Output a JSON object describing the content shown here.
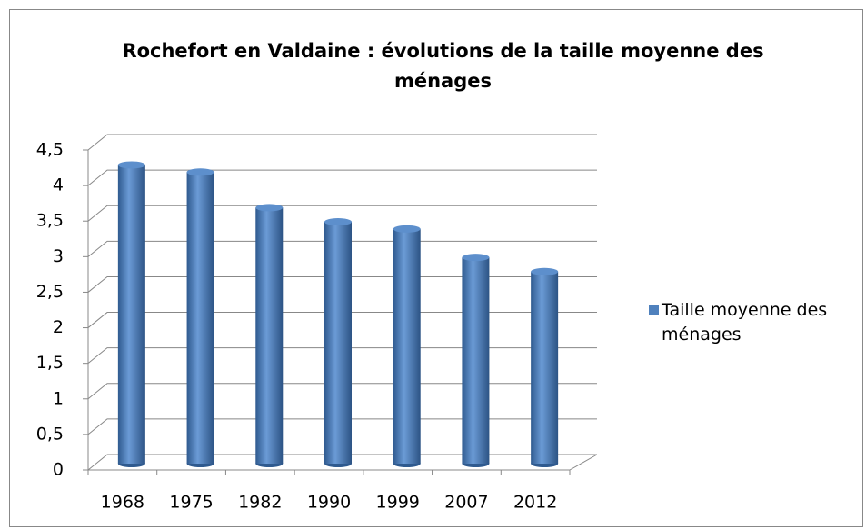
{
  "chart_data": {
    "type": "bar",
    "title": "Rochefort en Valdaine : évolutions de la taille moyenne des ménages",
    "categories": [
      "1968",
      "1975",
      "1982",
      "1990",
      "1999",
      "2007",
      "2012"
    ],
    "series": [
      {
        "name": "Taille moyenne des ménages",
        "color": "#4f81bd",
        "values": [
          4.2,
          4.1,
          3.6,
          3.4,
          3.3,
          2.9,
          2.7
        ]
      }
    ],
    "ylim": [
      0,
      4.5
    ],
    "yticks": [
      0,
      {
        "value": 0.5,
        "label": "0,5"
      },
      1,
      {
        "value": 1.5,
        "label": "1,5"
      },
      2,
      {
        "value": 2.5,
        "label": "2,5"
      },
      3,
      {
        "value": 3.5,
        "label": "3,5"
      },
      4,
      {
        "value": 4.5,
        "label": "4,5"
      }
    ],
    "grid": true,
    "legend": "right"
  }
}
